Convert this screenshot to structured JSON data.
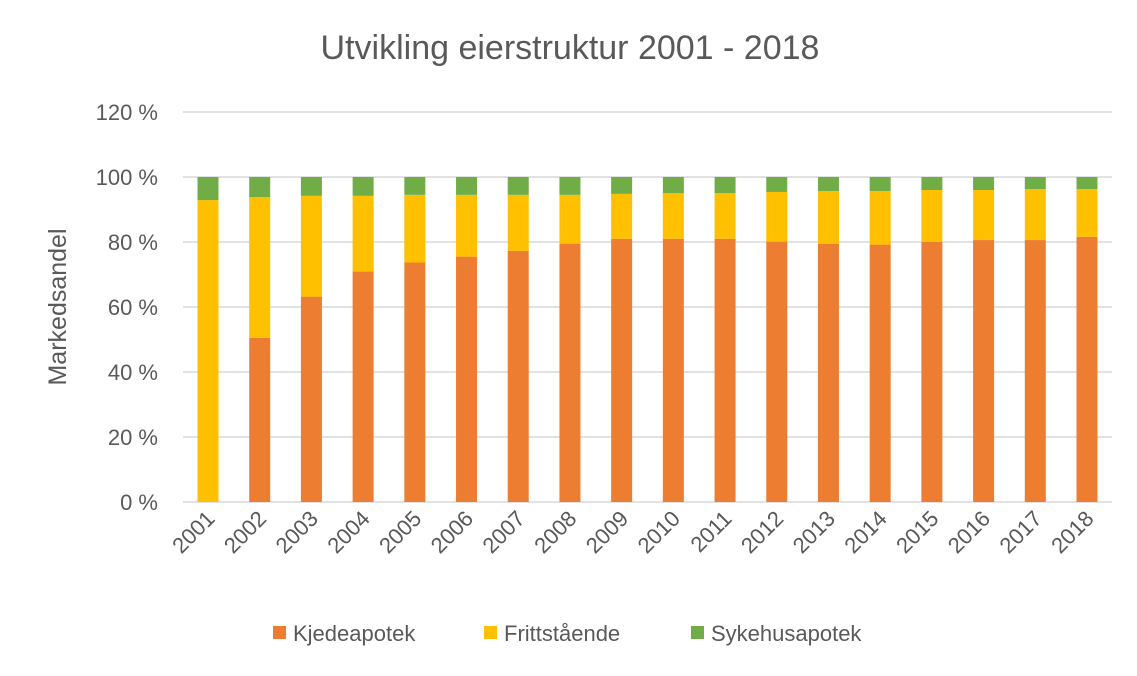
{
  "chart_data": {
    "type": "bar",
    "stacked": true,
    "title": "Utvikling eierstruktur 2001 - 2018",
    "xlabel": "",
    "ylabel": "Markedsandel",
    "ylim": [
      0,
      120
    ],
    "yticks": [
      0,
      20,
      40,
      60,
      80,
      100,
      120
    ],
    "ytick_labels": [
      "0 %",
      "20 %",
      "40 %",
      "60 %",
      "80 %",
      "100 %",
      "120 %"
    ],
    "grid": true,
    "legend_position": "bottom",
    "categories": [
      "2001",
      "2002",
      "2003",
      "2004",
      "2005",
      "2006",
      "2007",
      "2008",
      "2009",
      "2010",
      "2011",
      "2012",
      "2013",
      "2014",
      "2015",
      "2016",
      "2017",
      "2018"
    ],
    "series": [
      {
        "name": "Kjedeapotek",
        "color": "#ED7D31",
        "values": [
          0,
          50.5,
          63.2,
          70.9,
          73.7,
          75.5,
          77.3,
          79.5,
          81.0,
          81.0,
          81.0,
          80.1,
          79.4,
          79.2,
          80.0,
          80.6,
          80.6,
          81.6
        ]
      },
      {
        "name": "Frittstående",
        "color": "#FFC000",
        "values": [
          92.9,
          43.3,
          31.0,
          23.3,
          20.8,
          19.0,
          17.2,
          15.0,
          13.8,
          14.0,
          14.0,
          15.3,
          16.3,
          16.5,
          16.0,
          15.4,
          15.7,
          14.7
        ]
      },
      {
        "name": "Sykehusapotek",
        "color": "#70AD47",
        "values": [
          7.1,
          6.2,
          5.8,
          5.8,
          5.5,
          5.5,
          5.5,
          5.5,
          5.2,
          5.0,
          5.0,
          4.6,
          4.3,
          4.3,
          4.0,
          4.0,
          3.7,
          3.7
        ]
      }
    ]
  }
}
